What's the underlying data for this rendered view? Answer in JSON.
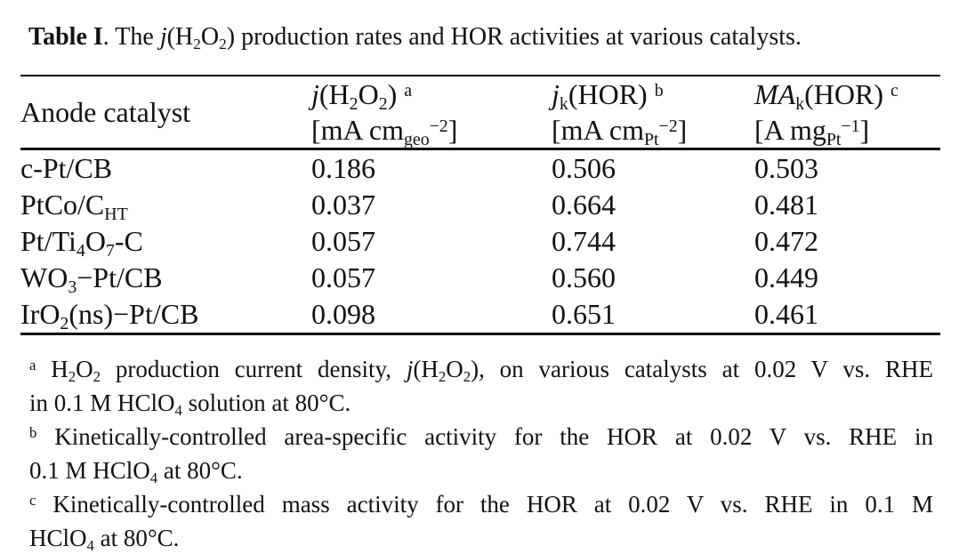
{
  "page": {
    "background": "#ffffff",
    "text_color": "#121212",
    "rule_color": "#000000"
  },
  "title": {
    "segments": [
      {
        "t": "Table I",
        "s": "b"
      },
      {
        "t": ". The "
      },
      {
        "t": "j",
        "s": "i"
      },
      {
        "t": "(H"
      },
      {
        "t": "2",
        "s": "sub"
      },
      {
        "t": "O"
      },
      {
        "t": "2",
        "s": "sub"
      },
      {
        "t": ") production rates and HOR activities at various catalysts."
      }
    ]
  },
  "table": {
    "header": {
      "col1": {
        "line1": [
          {
            "t": "Anode catalyst"
          }
        ]
      },
      "col2": {
        "line1": [
          {
            "t": "j",
            "s": "i"
          },
          {
            "t": "(H"
          },
          {
            "t": "2",
            "s": "sub"
          },
          {
            "t": "O"
          },
          {
            "t": "2",
            "s": "sub"
          },
          {
            "t": ") "
          },
          {
            "t": "a",
            "s": "sup"
          }
        ],
        "line2": [
          {
            "t": "[mA cm"
          },
          {
            "t": "geo",
            "s": "sub"
          },
          {
            "t": "−2",
            "s": "sup"
          },
          {
            "t": "]"
          }
        ]
      },
      "col3": {
        "line1": [
          {
            "t": "j",
            "s": "i"
          },
          {
            "t": "k",
            "s": "sub"
          },
          {
            "t": "(HOR) "
          },
          {
            "t": "b",
            "s": "sup"
          }
        ],
        "line2": [
          {
            "t": "[mA cm"
          },
          {
            "t": "Pt",
            "s": "sub"
          },
          {
            "t": "−2",
            "s": "sup"
          },
          {
            "t": "]"
          }
        ]
      },
      "col4": {
        "line1": [
          {
            "t": "MA",
            "s": "i"
          },
          {
            "t": "k",
            "s": "sub"
          },
          {
            "t": "(HOR) "
          },
          {
            "t": "c",
            "s": "sup"
          }
        ],
        "line2": [
          {
            "t": "[A mg"
          },
          {
            "t": "Pt",
            "s": "sub"
          },
          {
            "t": "−1",
            "s": "sup"
          },
          {
            "t": "]"
          }
        ]
      }
    },
    "rows": [
      {
        "catalyst": [
          {
            "t": "c-Pt/CB"
          }
        ],
        "j_h2o2": "0.186",
        "jk_hor": "0.506",
        "mak_hor": "0.503"
      },
      {
        "catalyst": [
          {
            "t": "PtCo/C"
          },
          {
            "t": "HT",
            "s": "sub"
          }
        ],
        "j_h2o2": "0.037",
        "jk_hor": "0.664",
        "mak_hor": "0.481"
      },
      {
        "catalyst": [
          {
            "t": "Pt/Ti"
          },
          {
            "t": "4",
            "s": "sub"
          },
          {
            "t": "O"
          },
          {
            "t": "7",
            "s": "sub"
          },
          {
            "t": "-C"
          }
        ],
        "j_h2o2": "0.057",
        "jk_hor": "0.744",
        "mak_hor": "0.472"
      },
      {
        "catalyst": [
          {
            "t": "WO"
          },
          {
            "t": "3",
            "s": "sub"
          },
          {
            "t": "−Pt/CB"
          }
        ],
        "j_h2o2": "0.057",
        "jk_hor": "0.560",
        "mak_hor": "0.449"
      },
      {
        "catalyst": [
          {
            "t": "IrO"
          },
          {
            "t": "2",
            "s": "sub"
          },
          {
            "t": "(ns)−Pt/CB"
          }
        ],
        "j_h2o2": "0.098",
        "jk_hor": "0.651",
        "mak_hor": "0.461"
      }
    ]
  },
  "footnotes": [
    {
      "id": "a",
      "line1": [
        {
          "t": "a",
          "s": "sup"
        },
        {
          "t": " H"
        },
        {
          "t": "2",
          "s": "sub"
        },
        {
          "t": "O"
        },
        {
          "t": "2",
          "s": "sub"
        },
        {
          "t": " production current density, "
        },
        {
          "t": "j",
          "s": "i"
        },
        {
          "t": "(H"
        },
        {
          "t": "2",
          "s": "sub"
        },
        {
          "t": "O"
        },
        {
          "t": "2",
          "s": "sub"
        },
        {
          "t": "), on various catalysts at 0.02 V vs. RHE"
        }
      ],
      "line2": [
        {
          "t": "in 0.1 M HClO"
        },
        {
          "t": "4",
          "s": "sub"
        },
        {
          "t": " solution at 80°C."
        }
      ]
    },
    {
      "id": "b",
      "line1": [
        {
          "t": "b",
          "s": "sup"
        },
        {
          "t": " Kinetically-controlled area-specific activity for the HOR at 0.02 V vs. RHE in"
        }
      ],
      "line2": [
        {
          "t": "0.1 M HClO"
        },
        {
          "t": "4",
          "s": "sub"
        },
        {
          "t": " at 80°C."
        }
      ]
    },
    {
      "id": "c",
      "line1": [
        {
          "t": "c",
          "s": "sup"
        },
        {
          "t": " Kinetically-controlled mass activity for the HOR at 0.02 V vs. RHE in 0.1 M"
        }
      ],
      "line2": [
        {
          "t": "HClO"
        },
        {
          "t": "4",
          "s": "sub"
        },
        {
          "t": " at 80°C."
        }
      ]
    }
  ]
}
